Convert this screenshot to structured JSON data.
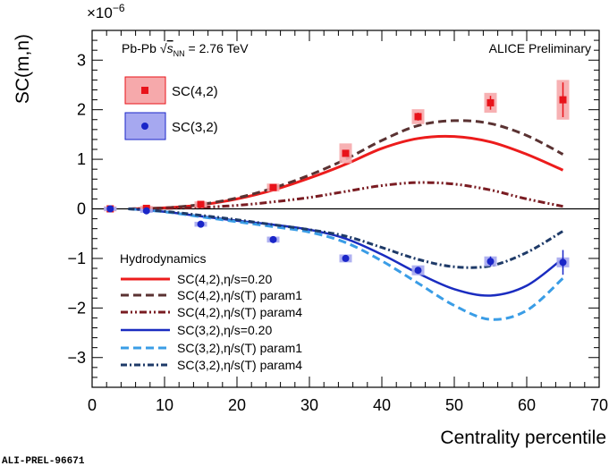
{
  "chart_data": {
    "type": "scatter",
    "xlabel": "Centrality percentile",
    "ylabel": "SC(m,n)",
    "y_multiplier": "×10",
    "y_multiplier_exp": "−6",
    "xlim": [
      0,
      70
    ],
    "ylim": [
      -3.6,
      3.6
    ],
    "x_ticks": [
      0,
      10,
      20,
      30,
      40,
      50,
      60,
      70
    ],
    "y_ticks": [
      -3,
      -2,
      -1,
      0,
      1,
      2,
      3
    ],
    "x_tick_labels": [
      "0",
      "10",
      "20",
      "30",
      "40",
      "50",
      "60",
      "70"
    ],
    "y_tick_labels": [
      "−3",
      "−2",
      "−1",
      "0",
      "1",
      "2",
      "3"
    ],
    "grid": false,
    "annotations": {
      "system": "Pb-Pb",
      "energy_sqrt": "√",
      "energy_s": "s",
      "energy_sub": "NN",
      "energy_value": " = 2.76 TeV",
      "experiment": "ALICE Preliminary",
      "footer": "ALI-PREL-96671"
    },
    "data_legend": [
      "SC(4,2)",
      "SC(3,2)"
    ],
    "hydro_legend_title": "Hydrodynamics",
    "data_series": [
      {
        "name": "SC(4,2)",
        "color": "#e8131a",
        "box_color": "#f6a9ab",
        "marker": "square",
        "points": [
          {
            "x": 2.5,
            "y": 0.0,
            "err": 0.03,
            "sys": 0.05
          },
          {
            "x": 7.5,
            "y": 0.01,
            "err": 0.03,
            "sys": 0.05
          },
          {
            "x": 15,
            "y": 0.09,
            "err": 0.03,
            "sys": 0.06
          },
          {
            "x": 25,
            "y": 0.43,
            "err": 0.04,
            "sys": 0.08
          },
          {
            "x": 35,
            "y": 1.12,
            "err": 0.06,
            "sys": 0.2
          },
          {
            "x": 45,
            "y": 1.86,
            "err": 0.08,
            "sys": 0.15
          },
          {
            "x": 55,
            "y": 2.14,
            "err": 0.14,
            "sys": 0.2
          },
          {
            "x": 65,
            "y": 2.2,
            "err": 0.35,
            "sys": 0.4
          }
        ]
      },
      {
        "name": "SC(3,2)",
        "color": "#1a26c8",
        "box_color": "#a6a8f0",
        "marker": "circle",
        "points": [
          {
            "x": 2.5,
            "y": 0.0,
            "err": 0.02,
            "sys": 0.04
          },
          {
            "x": 7.5,
            "y": -0.04,
            "err": 0.02,
            "sys": 0.04
          },
          {
            "x": 15,
            "y": -0.31,
            "err": 0.02,
            "sys": 0.05
          },
          {
            "x": 25,
            "y": -0.62,
            "err": 0.03,
            "sys": 0.06
          },
          {
            "x": 35,
            "y": -1.0,
            "err": 0.04,
            "sys": 0.08
          },
          {
            "x": 45,
            "y": -1.24,
            "err": 0.06,
            "sys": 0.1
          },
          {
            "x": 55,
            "y": -1.06,
            "err": 0.1,
            "sys": 0.1
          },
          {
            "x": 65,
            "y": -1.08,
            "err": 0.25,
            "sys": 0.1
          }
        ]
      }
    ],
    "series": [
      {
        "name": "SC(4,2),η/s=0.20",
        "color": "#ec1c1c",
        "dash": "solid",
        "x": [
          5,
          10,
          15,
          20,
          25,
          30,
          35,
          40,
          45,
          50,
          55,
          60,
          65
        ],
        "y": [
          0.0,
          0.02,
          0.08,
          0.2,
          0.38,
          0.62,
          0.9,
          1.22,
          1.42,
          1.46,
          1.35,
          1.1,
          0.78
        ]
      },
      {
        "name": "SC(4,2),η/s(T) param1",
        "color": "#5a3232",
        "dash": "dash",
        "x": [
          5,
          10,
          15,
          20,
          25,
          30,
          35,
          40,
          45,
          50,
          55,
          60,
          65
        ],
        "y": [
          0.0,
          0.02,
          0.09,
          0.22,
          0.42,
          0.68,
          1.0,
          1.38,
          1.68,
          1.78,
          1.72,
          1.48,
          1.1
        ]
      },
      {
        "name": "SC(4,2),η/s(T) param4",
        "color": "#7a1c22",
        "dash": "dashdotdot",
        "x": [
          5,
          10,
          15,
          20,
          25,
          30,
          35,
          40,
          45,
          50,
          55,
          60,
          65
        ],
        "y": [
          0.0,
          0.01,
          0.03,
          0.07,
          0.14,
          0.23,
          0.35,
          0.47,
          0.53,
          0.5,
          0.38,
          0.2,
          0.05
        ]
      },
      {
        "name": "SC(3,2),η/s=0.20",
        "color": "#1a2cc0",
        "dash": "solid",
        "x": [
          5,
          10,
          15,
          20,
          25,
          30,
          35,
          40,
          45,
          50,
          55,
          60,
          65
        ],
        "y": [
          0.0,
          -0.06,
          -0.15,
          -0.24,
          -0.32,
          -0.42,
          -0.6,
          -0.92,
          -1.3,
          -1.62,
          -1.75,
          -1.55,
          -1.0
        ]
      },
      {
        "name": "SC(3,2),η/s(T) param1",
        "color": "#3a9de6",
        "dash": "dash",
        "x": [
          5,
          10,
          15,
          20,
          25,
          30,
          35,
          40,
          45,
          50,
          55,
          60,
          65
        ],
        "y": [
          0.0,
          -0.06,
          -0.16,
          -0.26,
          -0.36,
          -0.47,
          -0.68,
          -1.05,
          -1.5,
          -1.95,
          -2.23,
          -2.05,
          -1.4
        ]
      },
      {
        "name": "SC(3,2),η/s(T) param4",
        "color": "#1e3a68",
        "dash": "dashdot",
        "x": [
          5,
          10,
          15,
          20,
          25,
          30,
          35,
          40,
          45,
          50,
          55,
          60,
          65
        ],
        "y": [
          0.0,
          -0.05,
          -0.13,
          -0.22,
          -0.32,
          -0.42,
          -0.55,
          -0.78,
          -1.02,
          -1.17,
          -1.15,
          -0.88,
          -0.45
        ]
      }
    ]
  }
}
